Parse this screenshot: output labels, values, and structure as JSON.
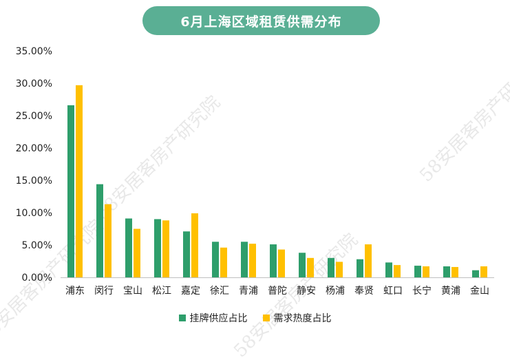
{
  "chart_data": {
    "type": "bar",
    "title": "6月上海区域租赁供需分布",
    "categories": [
      "浦东",
      "闵行",
      "宝山",
      "松江",
      "嘉定",
      "徐汇",
      "青浦",
      "普陀",
      "静安",
      "杨浦",
      "奉贤",
      "虹口",
      "长宁",
      "黄浦",
      "金山"
    ],
    "series": [
      {
        "name": "挂牌供应占比",
        "color": "#2e9e6b",
        "values": [
          26.6,
          14.4,
          9.1,
          9.0,
          7.1,
          5.5,
          5.5,
          5.1,
          3.8,
          3.0,
          2.8,
          2.3,
          1.8,
          1.7,
          1.1
        ]
      },
      {
        "name": "需求热度占比",
        "color": "#ffc000",
        "values": [
          29.7,
          11.3,
          7.5,
          8.8,
          9.9,
          4.6,
          5.2,
          4.3,
          3.0,
          2.4,
          5.1,
          1.9,
          1.7,
          1.6,
          1.7
        ]
      }
    ],
    "ylim": [
      0,
      35
    ],
    "yticks": [
      "0.00%",
      "5.00%",
      "10.00%",
      "15.00%",
      "20.00%",
      "25.00%",
      "30.00%",
      "35.00%"
    ],
    "grid": false,
    "legend_position": "bottom"
  },
  "watermarks": [
    "58安居客房产研究院",
    "58安居客房产研究院",
    "58安居客房产研究院",
    "58安居客房产研究院"
  ]
}
